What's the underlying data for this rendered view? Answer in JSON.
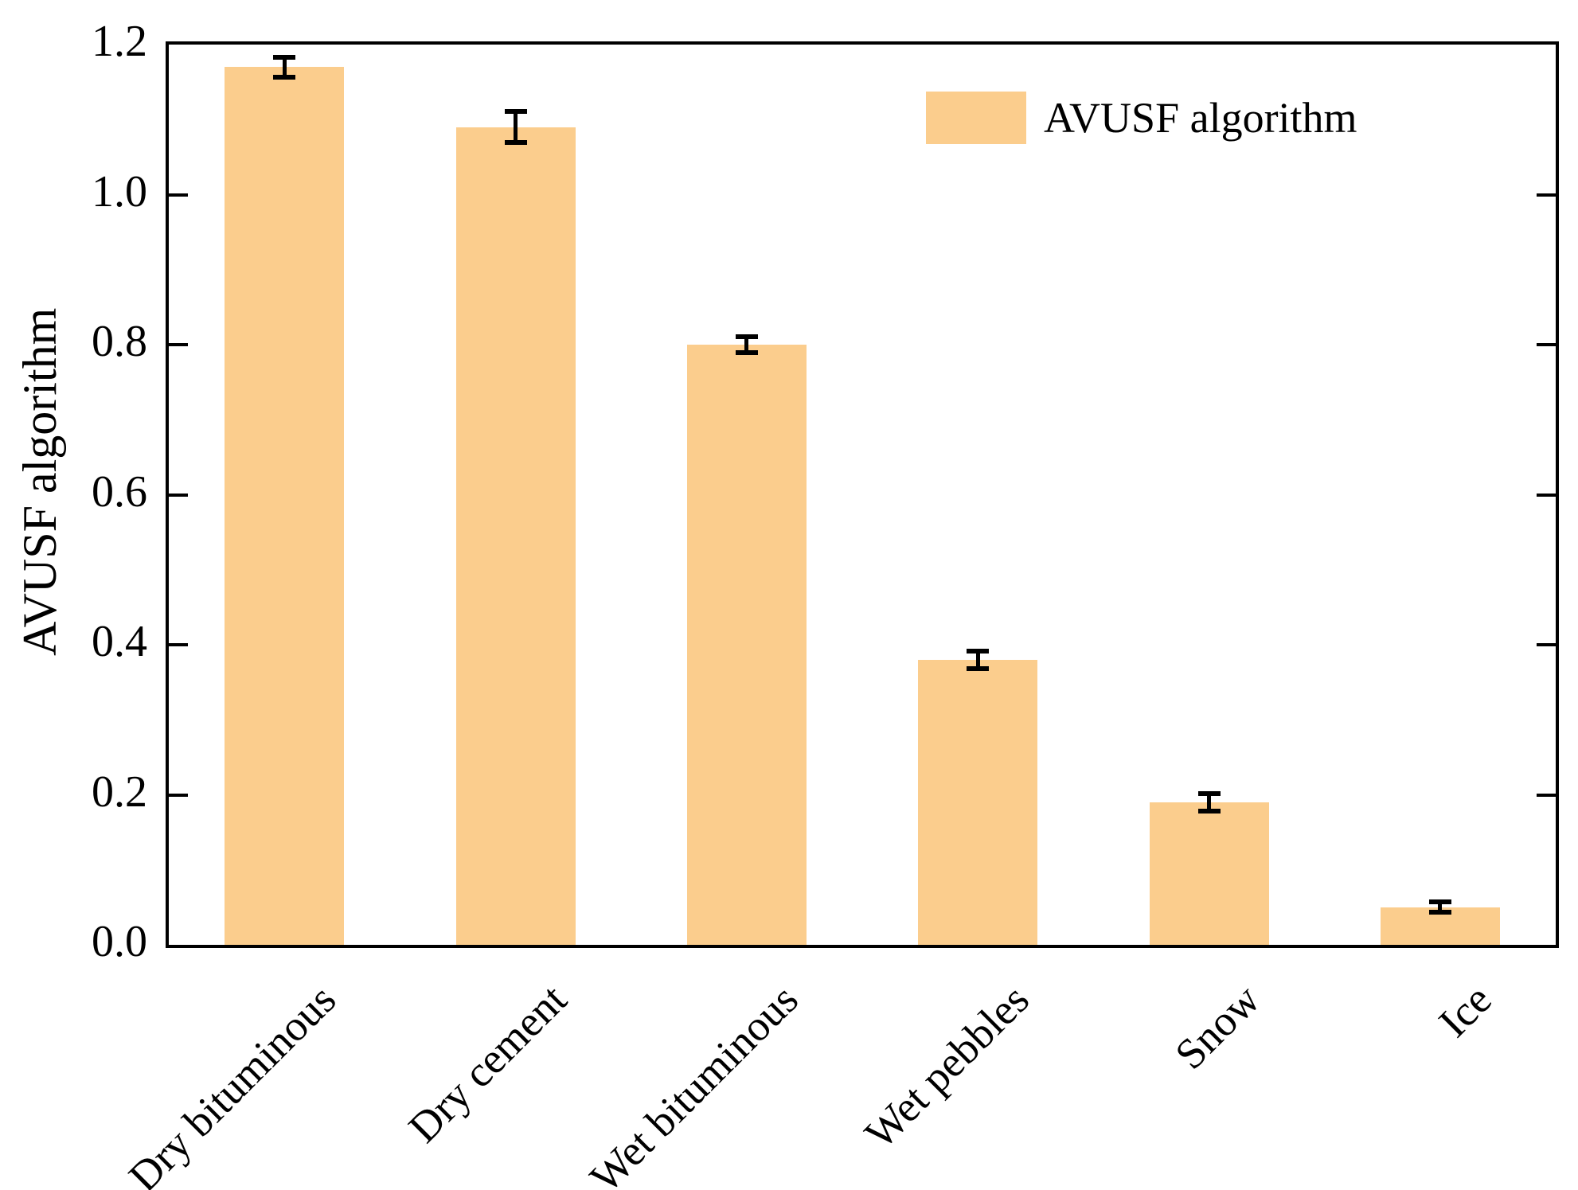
{
  "figure": {
    "background": "#ffffff"
  },
  "legend": {
    "label": "AVUSF algorithm",
    "swatch_color": "#FBCD8D",
    "position": "upper right",
    "frame": false
  },
  "chart_data": {
    "type": "bar",
    "title": "",
    "xlabel": "",
    "ylabel": "AVUSF algorithm",
    "categories": [
      "Dry bituminous",
      "Dry cement",
      "Wet bituminous",
      "Wet pebbles",
      "Snow",
      "Ice"
    ],
    "series": [
      {
        "name": "AVUSF algorithm",
        "values": [
          1.17,
          1.09,
          0.8,
          0.38,
          0.19,
          0.05
        ],
        "errors": [
          0.013,
          0.021,
          0.011,
          0.012,
          0.012,
          0.007
        ],
        "bar_color": "#FBCD8D",
        "error_color": "#000000"
      }
    ],
    "ylim": [
      0.0,
      1.2
    ],
    "yticks": [
      0.0,
      0.2,
      0.4,
      0.6,
      0.8,
      1.0,
      1.2
    ],
    "ytick_labels": [
      "0.0",
      "0.2",
      "0.4",
      "0.6",
      "0.8",
      "1.0",
      "1.2"
    ],
    "x_tick_rotation": 45,
    "grid": false,
    "tick_direction": "in",
    "spines": [
      "left",
      "right",
      "top",
      "bottom"
    ]
  }
}
